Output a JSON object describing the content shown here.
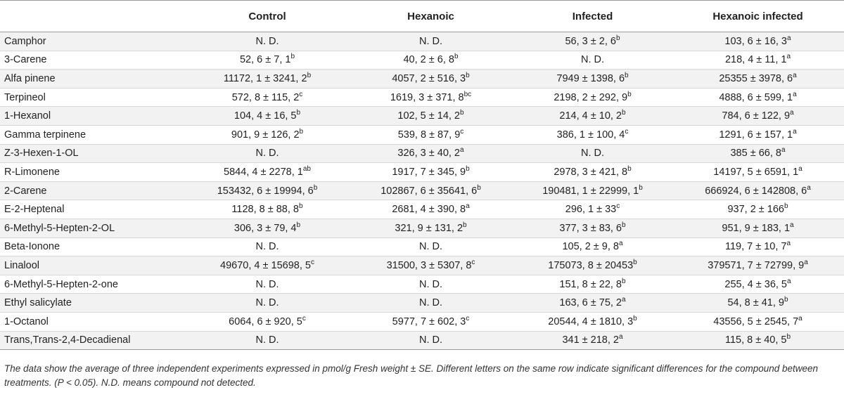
{
  "table": {
    "headers": [
      "",
      "Control",
      "Hexanoic",
      "Infected",
      "Hexanoic infected"
    ],
    "rows": [
      {
        "name": "Camphor",
        "cells": [
          {
            "v": "N. D.",
            "s": ""
          },
          {
            "v": "N. D.",
            "s": ""
          },
          {
            "v": "56, 3 ± 2, 6",
            "s": "b"
          },
          {
            "v": "103, 6 ± 16, 3",
            "s": "a"
          }
        ]
      },
      {
        "name": "3-Carene",
        "cells": [
          {
            "v": "52, 6 ± 7, 1",
            "s": "b"
          },
          {
            "v": "40, 2 ± 6, 8",
            "s": "b"
          },
          {
            "v": "N. D.",
            "s": ""
          },
          {
            "v": "218, 4 ± 11, 1",
            "s": "a"
          }
        ]
      },
      {
        "name": "Alfa pinene",
        "cells": [
          {
            "v": "11172, 1 ± 3241, 2",
            "s": "b"
          },
          {
            "v": "4057, 2 ± 516, 3",
            "s": "b"
          },
          {
            "v": "7949 ± 1398, 6",
            "s": "b"
          },
          {
            "v": "25355 ± 3978, 6",
            "s": "a"
          }
        ]
      },
      {
        "name": "Terpineol",
        "cells": [
          {
            "v": "572, 8 ± 115, 2",
            "s": "c"
          },
          {
            "v": "1619, 3 ± 371, 8",
            "s": "bc"
          },
          {
            "v": "2198, 2 ± 292, 9",
            "s": "b"
          },
          {
            "v": "4888, 6 ± 599, 1",
            "s": "a"
          }
        ]
      },
      {
        "name": "1-Hexanol",
        "cells": [
          {
            "v": "104, 4 ± 16, 5",
            "s": "b"
          },
          {
            "v": "102, 5 ± 14, 2",
            "s": "b"
          },
          {
            "v": "214, 4 ± 10, 2",
            "s": "b"
          },
          {
            "v": "784, 6 ± 122, 9",
            "s": "a"
          }
        ]
      },
      {
        "name": "Gamma terpinene",
        "cells": [
          {
            "v": "901, 9 ± 126, 2",
            "s": "b"
          },
          {
            "v": "539, 8 ± 87, 9",
            "s": "c"
          },
          {
            "v": "386, 1 ± 100, 4",
            "s": "c"
          },
          {
            "v": "1291, 6 ± 157, 1",
            "s": "a"
          }
        ]
      },
      {
        "name": "Z-3-Hexen-1-OL",
        "cells": [
          {
            "v": "N. D.",
            "s": ""
          },
          {
            "v": "326, 3 ± 40, 2",
            "s": "a"
          },
          {
            "v": "N. D.",
            "s": ""
          },
          {
            "v": "385 ± 66, 8",
            "s": "a"
          }
        ]
      },
      {
        "name": "R-Limonene",
        "cells": [
          {
            "v": "5844, 4 ± 2278, 1",
            "s": "ab"
          },
          {
            "v": "1917, 7 ± 345, 9",
            "s": "b"
          },
          {
            "v": "2978, 3 ± 421, 8",
            "s": "b"
          },
          {
            "v": "14197, 5 ± 6591, 1",
            "s": "a"
          }
        ]
      },
      {
        "name": "2-Carene",
        "cells": [
          {
            "v": "153432, 6 ± 19994, 6",
            "s": "b"
          },
          {
            "v": "102867, 6 ± 35641, 6",
            "s": "b"
          },
          {
            "v": "190481, 1 ± 22999, 1",
            "s": "b"
          },
          {
            "v": "666924, 6 ± 142808, 6",
            "s": "a"
          }
        ]
      },
      {
        "name": "E-2-Heptenal",
        "cells": [
          {
            "v": "1128, 8 ± 88, 8",
            "s": "b"
          },
          {
            "v": "2681, 4 ± 390, 8",
            "s": "a"
          },
          {
            "v": "296, 1 ± 33",
            "s": "c"
          },
          {
            "v": "937, 2 ± 166",
            "s": "b"
          }
        ]
      },
      {
        "name": "6-Methyl-5-Hepten-2-OL",
        "cells": [
          {
            "v": "306, 3 ± 79, 4",
            "s": "b"
          },
          {
            "v": "321, 9 ± 131, 2",
            "s": "b"
          },
          {
            "v": "377, 3 ± 83, 6",
            "s": "b"
          },
          {
            "v": "951, 9 ± 183, 1",
            "s": "a"
          }
        ]
      },
      {
        "name": "Beta-Ionone",
        "cells": [
          {
            "v": "N. D.",
            "s": ""
          },
          {
            "v": "N. D.",
            "s": ""
          },
          {
            "v": "105, 2 ± 9, 8",
            "s": "a"
          },
          {
            "v": "119, 7 ± 10, 7",
            "s": "a"
          }
        ]
      },
      {
        "name": "Linalool",
        "cells": [
          {
            "v": "49670, 4 ± 15698, 5",
            "s": "c"
          },
          {
            "v": "31500, 3 ± 5307, 8",
            "s": "c"
          },
          {
            "v": "175073, 8 ± 20453",
            "s": "b"
          },
          {
            "v": "379571, 7 ± 72799, 9",
            "s": "a"
          }
        ]
      },
      {
        "name": "6-Methyl-5-Hepten-2-one",
        "cells": [
          {
            "v": "N. D.",
            "s": ""
          },
          {
            "v": "N. D.",
            "s": ""
          },
          {
            "v": "151, 8 ± 22, 8",
            "s": "b"
          },
          {
            "v": "255, 4 ± 36, 5",
            "s": "a"
          }
        ]
      },
      {
        "name": "Ethyl salicylate",
        "cells": [
          {
            "v": "N. D.",
            "s": ""
          },
          {
            "v": "N. D.",
            "s": ""
          },
          {
            "v": "163, 6 ± 75, 2",
            "s": "a"
          },
          {
            "v": "54, 8 ± 41, 9",
            "s": "b"
          }
        ]
      },
      {
        "name": "1-Octanol",
        "cells": [
          {
            "v": "6064, 6 ± 920, 5",
            "s": "c"
          },
          {
            "v": "5977, 7 ± 602, 3",
            "s": "c"
          },
          {
            "v": "20544, 4 ± 1810, 3",
            "s": "b"
          },
          {
            "v": "43556, 5 ± 2545, 7",
            "s": "a"
          }
        ]
      },
      {
        "name": "Trans,Trans-2,4-Decadienal",
        "cells": [
          {
            "v": "N. D.",
            "s": ""
          },
          {
            "v": "N. D.",
            "s": ""
          },
          {
            "v": "341 ± 218, 2",
            "s": "a"
          },
          {
            "v": "115, 8 ± 40, 5",
            "s": "b"
          }
        ]
      }
    ]
  },
  "footnote": "The data show the average of three independent experiments expressed in pmol/g Fresh weight ± SE. Different letters on the same row indicate significant differences for the compound between treatments. (P < 0.05). N.D. means compound not detected."
}
